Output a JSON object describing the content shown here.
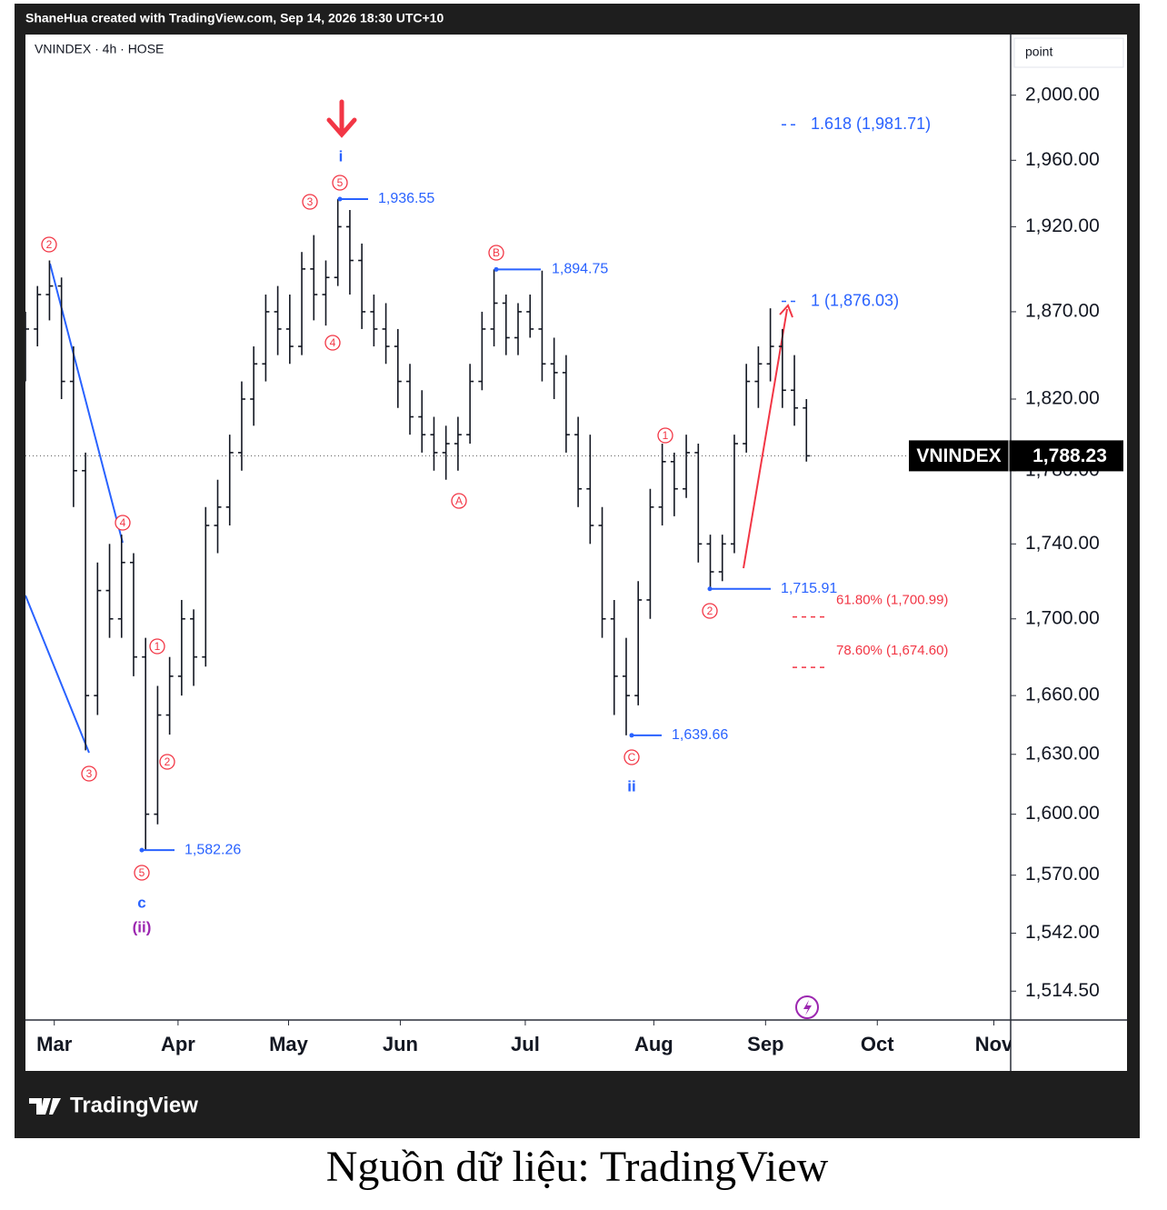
{
  "header": "ShaneHua created with TradingView.com, Sep 14, 2026 18:30 UTC+10",
  "caption": "Nguồn dữ liệu: TradingView",
  "brand": "TradingView",
  "chart_data": {
    "type": "ohlc",
    "symbol_info": "VNINDEX · 4h · HOSE",
    "axis_unit": "point",
    "log_scale": true,
    "ylim": [
      1501,
      2038
    ],
    "yticks": [
      {
        "value": 2000,
        "label": "2,000.00"
      },
      {
        "value": 1960,
        "label": "1,960.00"
      },
      {
        "value": 1920,
        "label": "1,920.00"
      },
      {
        "value": 1870,
        "label": "1,870.00"
      },
      {
        "value": 1820,
        "label": "1,820.00"
      },
      {
        "value": 1780,
        "label": "1,780.00"
      },
      {
        "value": 1740,
        "label": "1,740.00"
      },
      {
        "value": 1700,
        "label": "1,700.00"
      },
      {
        "value": 1660,
        "label": "1,660.00"
      },
      {
        "value": 1630,
        "label": "1,630.00"
      },
      {
        "value": 1600,
        "label": "1,600.00"
      },
      {
        "value": 1570,
        "label": "1,570.00"
      },
      {
        "value": 1542,
        "label": "1,542.00"
      },
      {
        "value": 1514.5,
        "label": "1,514.50"
      }
    ],
    "xlim": [
      0,
      82
    ],
    "xticks": [
      {
        "value": 2.4,
        "label": "Mar"
      },
      {
        "value": 12.7,
        "label": "Apr"
      },
      {
        "value": 21.9,
        "label": "May"
      },
      {
        "value": 31.2,
        "label": "Jun"
      },
      {
        "value": 41.6,
        "label": "Jul"
      },
      {
        "value": 52.3,
        "label": "Aug"
      },
      {
        "value": 61.6,
        "label": "Sep"
      },
      {
        "value": 70.9,
        "label": "Oct"
      },
      {
        "value": 80.6,
        "label": "Nov"
      }
    ],
    "color": "#131722",
    "ohlc": [
      [
        1840,
        1870,
        1830,
        1860
      ],
      [
        1860,
        1885,
        1850,
        1880
      ],
      [
        1880,
        1900,
        1865,
        1885
      ],
      [
        1885,
        1890,
        1820,
        1830
      ],
      [
        1830,
        1850,
        1760,
        1780
      ],
      [
        1780,
        1790,
        1632,
        1660
      ],
      [
        1660,
        1730,
        1650,
        1715
      ],
      [
        1715,
        1740,
        1690,
        1700
      ],
      [
        1700,
        1745,
        1690,
        1730
      ],
      [
        1730,
        1735,
        1670,
        1680
      ],
      [
        1680,
        1690,
        1582.26,
        1600
      ],
      [
        1600,
        1665,
        1595,
        1650
      ],
      [
        1650,
        1680,
        1640,
        1670
      ],
      [
        1670,
        1710,
        1660,
        1700
      ],
      [
        1700,
        1705,
        1665,
        1680
      ],
      [
        1680,
        1760,
        1675,
        1750
      ],
      [
        1750,
        1775,
        1735,
        1760
      ],
      [
        1760,
        1800,
        1750,
        1790
      ],
      [
        1790,
        1830,
        1780,
        1820
      ],
      [
        1820,
        1850,
        1805,
        1840
      ],
      [
        1840,
        1880,
        1830,
        1870
      ],
      [
        1870,
        1885,
        1845,
        1860
      ],
      [
        1860,
        1880,
        1840,
        1850
      ],
      [
        1850,
        1905,
        1845,
        1895
      ],
      [
        1895,
        1915,
        1865,
        1880
      ],
      [
        1880,
        1900,
        1862,
        1890
      ],
      [
        1890,
        1936.55,
        1885,
        1920
      ],
      [
        1920,
        1930,
        1880,
        1900
      ],
      [
        1900,
        1910,
        1860,
        1870
      ],
      [
        1870,
        1880,
        1850,
        1860
      ],
      [
        1860,
        1875,
        1840,
        1850
      ],
      [
        1850,
        1860,
        1815,
        1830
      ],
      [
        1830,
        1840,
        1800,
        1810
      ],
      [
        1810,
        1825,
        1790,
        1800
      ],
      [
        1800,
        1810,
        1780,
        1790
      ],
      [
        1790,
        1805,
        1775,
        1795
      ],
      [
        1795,
        1810,
        1780,
        1800
      ],
      [
        1800,
        1840,
        1795,
        1830
      ],
      [
        1830,
        1870,
        1825,
        1860
      ],
      [
        1860,
        1894.75,
        1850,
        1875
      ],
      [
        1875,
        1880,
        1845,
        1855
      ],
      [
        1855,
        1875,
        1845,
        1870
      ],
      [
        1870,
        1880,
        1855,
        1860
      ],
      [
        1860,
        1894,
        1830,
        1840
      ],
      [
        1840,
        1855,
        1820,
        1835
      ],
      [
        1835,
        1845,
        1790,
        1800
      ],
      [
        1800,
        1810,
        1760,
        1770
      ],
      [
        1770,
        1800,
        1740,
        1750
      ],
      [
        1750,
        1760,
        1690,
        1700
      ],
      [
        1700,
        1710,
        1650,
        1670
      ],
      [
        1670,
        1690,
        1639.66,
        1660
      ],
      [
        1660,
        1720,
        1655,
        1710
      ],
      [
        1710,
        1770,
        1700,
        1760
      ],
      [
        1760,
        1795,
        1750,
        1785
      ],
      [
        1785,
        1790,
        1755,
        1770
      ],
      [
        1770,
        1800,
        1765,
        1790
      ],
      [
        1790,
        1795,
        1730,
        1740
      ],
      [
        1740,
        1745,
        1715.91,
        1725
      ],
      [
        1725,
        1745,
        1720,
        1740
      ],
      [
        1740,
        1800,
        1735,
        1795
      ],
      [
        1795,
        1840,
        1790,
        1830
      ],
      [
        1830,
        1850,
        1815,
        1840
      ],
      [
        1840,
        1872,
        1830,
        1850
      ],
      [
        1850,
        1860,
        1815,
        1825
      ],
      [
        1825,
        1845,
        1805,
        1815
      ],
      [
        1815,
        1820,
        1785,
        1788.23
      ]
    ],
    "last": {
      "name": "VNINDEX",
      "value": 1788.23,
      "label": "1,788.23"
    },
    "price_levels": [
      {
        "value": 1936.55,
        "label": "1,936.55"
      },
      {
        "value": 1894.75,
        "label": "1,894.75"
      },
      {
        "value": 1715.91,
        "label": "1,715.91"
      },
      {
        "value": 1639.66,
        "label": "1,639.66"
      },
      {
        "value": 1582.26,
        "label": "1,582.26"
      }
    ],
    "fib_levels": [
      {
        "label": "1.618 (1,981.71)",
        "value": 1981.71,
        "color": "#2962ff"
      },
      {
        "label": "1 (1,876.03)",
        "value": 1876.03,
        "color": "#2962ff"
      },
      {
        "label": "61.80% (1,700.99)",
        "value": 1700.99,
        "color": "#f23645"
      },
      {
        "label": "78.60% (1,674.60)",
        "value": 1674.6,
        "color": "#f23645"
      }
    ],
    "wave_labels": [
      {
        "text": "2",
        "color": "#f23645",
        "circled": true
      },
      {
        "text": "4",
        "color": "#f23645",
        "circled": true
      },
      {
        "text": "3",
        "color": "#f23645",
        "circled": true
      },
      {
        "text": "1",
        "color": "#f23645",
        "circled": true
      },
      {
        "text": "2",
        "color": "#f23645",
        "circled": true
      },
      {
        "text": "5",
        "color": "#f23645",
        "circled": true
      },
      {
        "text": "3",
        "color": "#f23645",
        "circled": true
      },
      {
        "text": "5",
        "color": "#f23645",
        "circled": true
      },
      {
        "text": "4",
        "color": "#f23645",
        "circled": true
      },
      {
        "text": "B",
        "color": "#f23645",
        "circled": true
      },
      {
        "text": "A",
        "color": "#f23645",
        "circled": true
      },
      {
        "text": "1",
        "color": "#f23645",
        "circled": true
      },
      {
        "text": "C",
        "color": "#f23645",
        "circled": true
      },
      {
        "text": "2",
        "color": "#f23645",
        "circled": true
      },
      {
        "text": "i",
        "color": "#2962ff",
        "circled": false
      },
      {
        "text": "c",
        "color": "#2962ff",
        "circled": false
      },
      {
        "text": "ii",
        "color": "#2962ff",
        "circled": false
      },
      {
        "text": "(ii)",
        "color": "#9c27b0",
        "circled": false
      }
    ]
  }
}
